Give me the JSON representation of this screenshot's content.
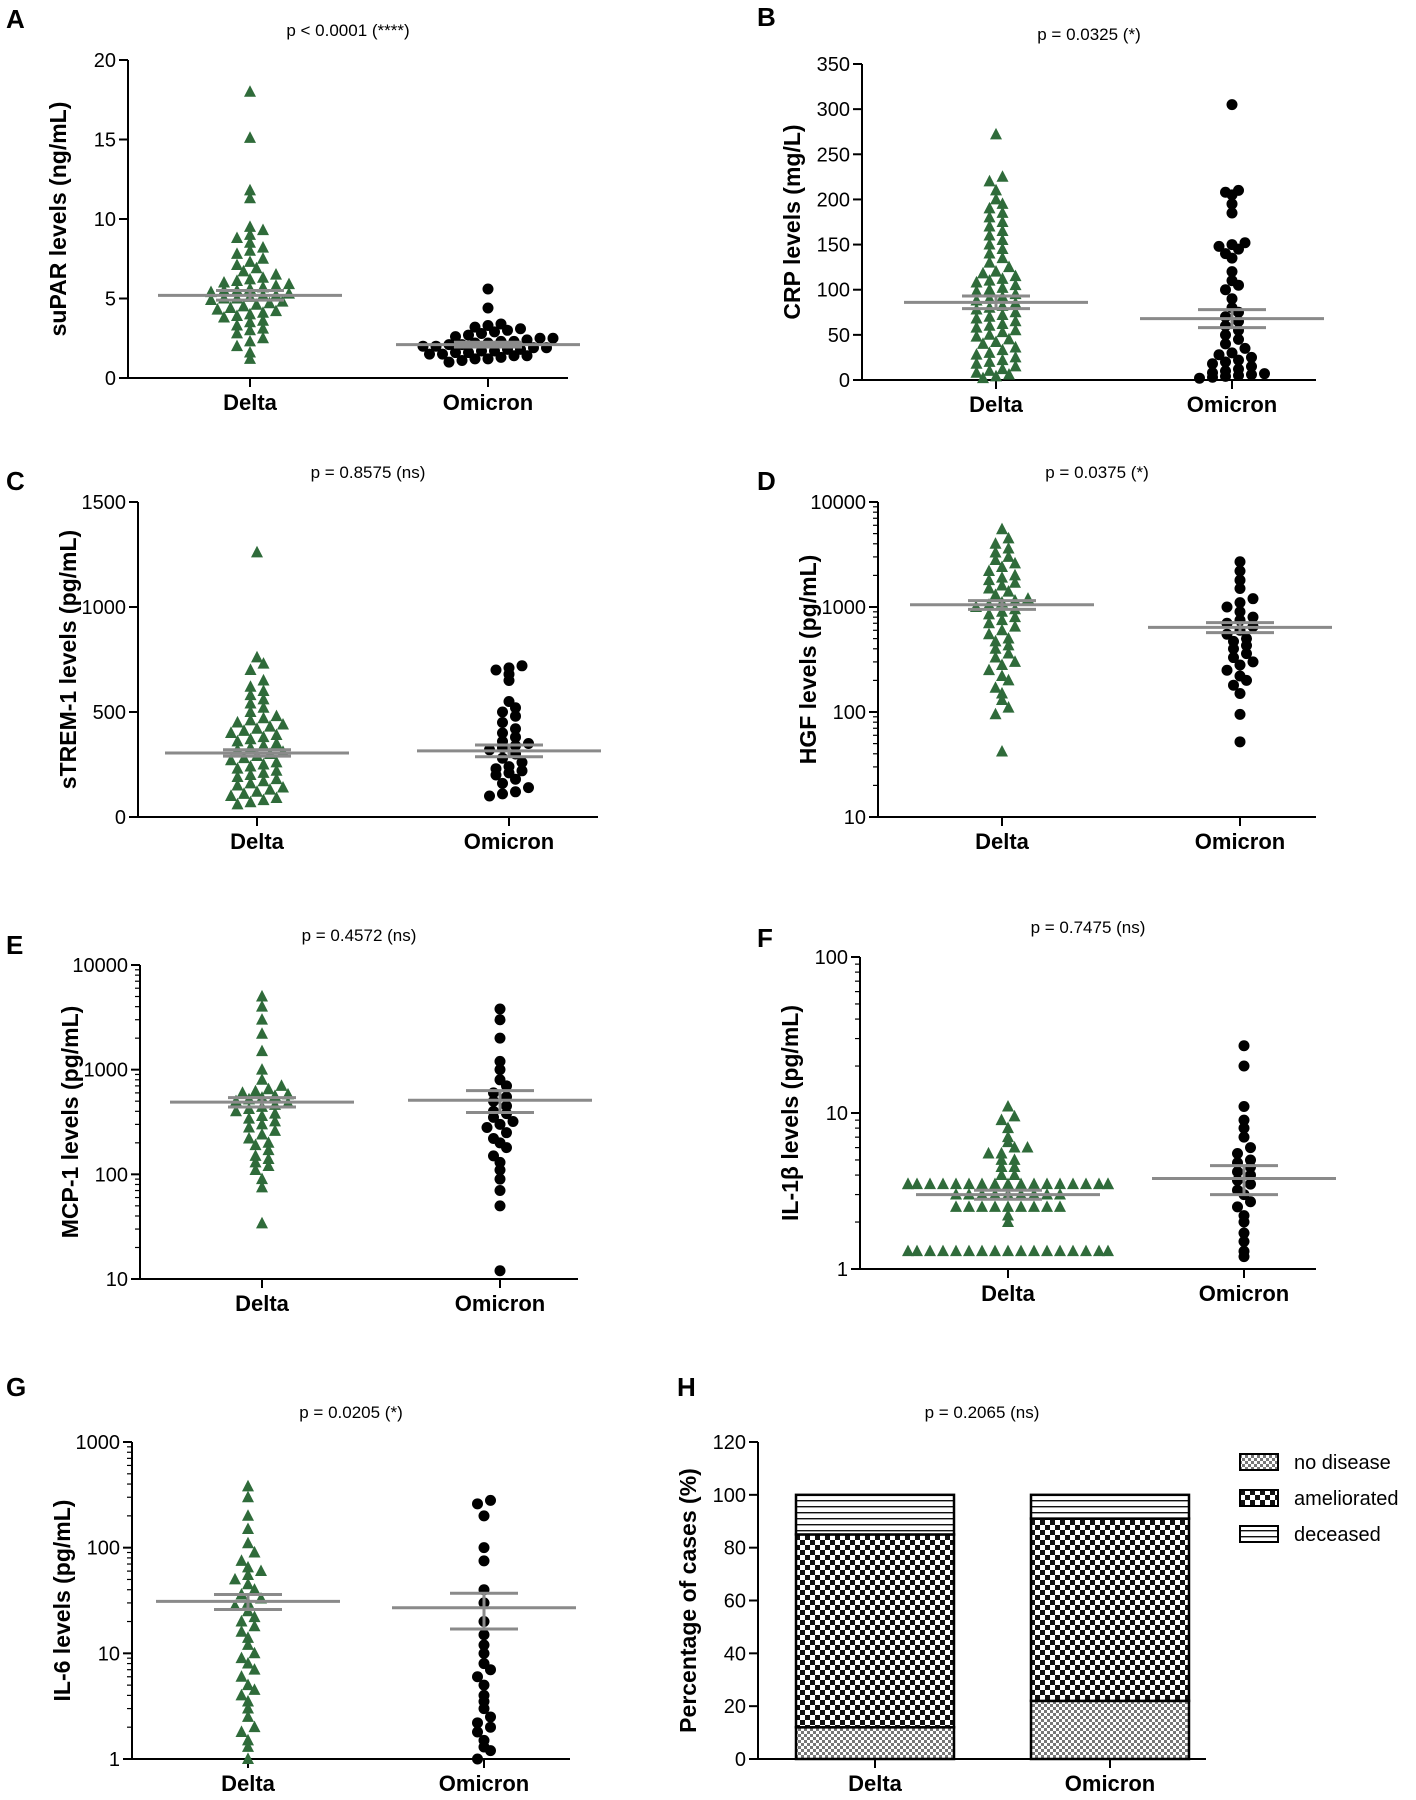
{
  "chart_data": [
    {
      "id": "A",
      "panel_letter": "A",
      "type": "scatter",
      "scale": "linear",
      "title": "p < 0.0001 (****)",
      "ylabel": "suPAR levels (ng/mL)",
      "categories": [
        "Delta",
        "Omicron"
      ],
      "ylim": [
        0,
        20
      ],
      "yticks": [
        0,
        5,
        10,
        15,
        20
      ],
      "marker": [
        "triangle",
        "circle"
      ],
      "marker_colors": [
        "#2f6b3a",
        "#000000"
      ],
      "mean": [
        5.2,
        2.1
      ],
      "sem": [
        0.3,
        0.15
      ],
      "values": [
        [
          1.2,
          1.6,
          2.0,
          2.3,
          2.5,
          2.8,
          3.0,
          3.1,
          3.3,
          3.5,
          3.6,
          3.8,
          3.9,
          4.0,
          4.1,
          4.2,
          4.3,
          4.4,
          4.5,
          4.6,
          4.7,
          4.8,
          4.9,
          5.0,
          5.0,
          5.1,
          5.2,
          5.2,
          5.3,
          5.4,
          5.5,
          5.5,
          5.6,
          5.7,
          5.8,
          5.9,
          6.0,
          6.1,
          6.2,
          6.3,
          6.5,
          6.7,
          6.9,
          7.1,
          7.3,
          7.5,
          7.8,
          8.0,
          8.2,
          8.5,
          8.8,
          9.0,
          9.3,
          9.5,
          11.3,
          11.8,
          15.1,
          18.0
        ],
        [
          1.0,
          1.1,
          1.2,
          1.2,
          1.3,
          1.4,
          1.4,
          1.5,
          1.5,
          1.6,
          1.6,
          1.7,
          1.7,
          1.8,
          1.8,
          1.9,
          1.9,
          2.0,
          2.0,
          2.1,
          2.1,
          2.2,
          2.2,
          2.3,
          2.3,
          2.4,
          2.5,
          2.5,
          2.6,
          2.7,
          2.8,
          2.9,
          3.0,
          3.1,
          3.2,
          3.3,
          3.4,
          4.4,
          5.6
        ]
      ]
    },
    {
      "id": "B",
      "panel_letter": "B",
      "type": "scatter",
      "scale": "linear",
      "title": "p = 0.0325 (*)",
      "ylabel": "CRP levels (mg/L)",
      "categories": [
        "Delta",
        "Omicron"
      ],
      "ylim": [
        0,
        350
      ],
      "yticks": [
        0,
        50,
        100,
        150,
        200,
        250,
        300,
        350
      ],
      "marker": [
        "triangle",
        "circle"
      ],
      "marker_colors": [
        "#2f6b3a",
        "#000000"
      ],
      "mean": [
        86,
        68
      ],
      "sem": [
        7,
        10
      ],
      "values": [
        [
          2,
          4,
          6,
          8,
          10,
          12,
          15,
          18,
          20,
          22,
          25,
          28,
          30,
          33,
          36,
          40,
          42,
          45,
          48,
          50,
          53,
          55,
          58,
          60,
          62,
          65,
          68,
          70,
          72,
          75,
          78,
          80,
          82,
          85,
          88,
          90,
          92,
          95,
          98,
          100,
          102,
          105,
          108,
          110,
          112,
          115,
          118,
          120,
          125,
          130,
          135,
          140,
          145,
          150,
          155,
          160,
          165,
          170,
          175,
          180,
          185,
          190,
          195,
          200,
          210,
          220,
          225,
          272
        ],
        [
          2,
          3,
          4,
          5,
          6,
          7,
          8,
          10,
          12,
          15,
          18,
          20,
          22,
          25,
          28,
          30,
          35,
          40,
          45,
          50,
          55,
          60,
          65,
          70,
          75,
          80,
          90,
          100,
          105,
          110,
          120,
          135,
          140,
          145,
          148,
          150,
          152,
          185,
          195,
          205,
          208,
          210,
          305
        ]
      ]
    },
    {
      "id": "C",
      "panel_letter": "C",
      "type": "scatter",
      "scale": "linear",
      "title": "p = 0.8575 (ns)",
      "ylabel": "sTREM-1 levels (pg/mL)",
      "categories": [
        "Delta",
        "Omicron"
      ],
      "ylim": [
        0,
        1500
      ],
      "yticks": [
        0,
        500,
        1000,
        1500
      ],
      "marker": [
        "triangle",
        "circle"
      ],
      "marker_colors": [
        "#2f6b3a",
        "#000000"
      ],
      "mean": [
        305,
        315
      ],
      "sem": [
        15,
        28
      ],
      "values": [
        [
          60,
          70,
          80,
          90,
          100,
          110,
          120,
          130,
          140,
          150,
          160,
          170,
          180,
          190,
          200,
          210,
          220,
          230,
          240,
          250,
          260,
          270,
          280,
          290,
          300,
          310,
          320,
          330,
          340,
          350,
          360,
          370,
          380,
          390,
          400,
          410,
          420,
          430,
          440,
          450,
          460,
          470,
          480,
          500,
          520,
          540,
          560,
          580,
          600,
          620,
          650,
          700,
          730,
          760,
          1260
        ],
        [
          100,
          110,
          120,
          140,
          160,
          180,
          200,
          210,
          220,
          230,
          240,
          260,
          280,
          300,
          320,
          330,
          340,
          350,
          360,
          380,
          400,
          420,
          450,
          480,
          500,
          520,
          550,
          650,
          680,
          700,
          710,
          720
        ]
      ]
    },
    {
      "id": "D",
      "panel_letter": "D",
      "type": "scatter",
      "scale": "log",
      "title": "p = 0.0375 (*)",
      "ylabel": "HGF levels (pg/mL)",
      "categories": [
        "Delta",
        "Omicron"
      ],
      "ylim": [
        10,
        10000
      ],
      "yticks": [
        10,
        100,
        1000,
        10000
      ],
      "marker": [
        "triangle",
        "circle"
      ],
      "marker_colors": [
        "#2f6b3a",
        "#000000"
      ],
      "mean": [
        1050,
        640
      ],
      "sem": [
        100,
        70
      ],
      "values": [
        [
          42,
          95,
          110,
          130,
          150,
          170,
          200,
          220,
          250,
          280,
          300,
          330,
          360,
          400,
          430,
          470,
          500,
          550,
          600,
          650,
          700,
          750,
          800,
          850,
          900,
          950,
          1000,
          1050,
          1100,
          1150,
          1200,
          1300,
          1400,
          1500,
          1600,
          1700,
          1800,
          1900,
          2000,
          2200,
          2400,
          2600,
          2800,
          3000,
          3300,
          3600,
          4000,
          4500,
          5500
        ],
        [
          52,
          95,
          150,
          180,
          200,
          220,
          250,
          280,
          300,
          330,
          360,
          400,
          430,
          470,
          500,
          550,
          600,
          650,
          700,
          750,
          800,
          900,
          1000,
          1100,
          1200,
          1500,
          1800,
          2200,
          2700
        ]
      ]
    },
    {
      "id": "E",
      "panel_letter": "E",
      "type": "scatter",
      "scale": "log",
      "title": "p = 0.4572 (ns)",
      "ylabel": "MCP-1 levels (pg/mL)",
      "categories": [
        "Delta",
        "Omicron"
      ],
      "ylim": [
        10,
        10000
      ],
      "yticks": [
        10,
        100,
        1000,
        10000
      ],
      "marker": [
        "triangle",
        "circle"
      ],
      "marker_colors": [
        "#2f6b3a",
        "#000000"
      ],
      "mean": [
        490,
        510
      ],
      "sem": [
        50,
        120
      ],
      "values": [
        [
          34,
          75,
          90,
          110,
          120,
          130,
          140,
          150,
          170,
          190,
          200,
          220,
          240,
          260,
          280,
          300,
          320,
          340,
          360,
          380,
          400,
          420,
          440,
          460,
          480,
          500,
          520,
          540,
          560,
          580,
          600,
          620,
          650,
          700,
          800,
          1000,
          1500,
          2200,
          3000,
          4000,
          5000
        ],
        [
          12,
          50,
          70,
          90,
          110,
          130,
          150,
          180,
          200,
          220,
          250,
          280,
          300,
          320,
          350,
          380,
          400,
          450,
          500,
          550,
          600,
          700,
          800,
          1000,
          1200,
          2000,
          3000,
          3800
        ]
      ]
    },
    {
      "id": "F",
      "panel_letter": "F",
      "type": "scatter",
      "scale": "log",
      "title": "p = 0.7475 (ns)",
      "ylabel": "IL-1β levels (pg/mL)",
      "categories": [
        "Delta",
        "Omicron"
      ],
      "ylim": [
        1,
        100
      ],
      "yticks": [
        1,
        10,
        100
      ],
      "marker": [
        "triangle",
        "circle"
      ],
      "marker_colors": [
        "#2f6b3a",
        "#000000"
      ],
      "mean": [
        3.0,
        3.8
      ],
      "sem": [
        0.2,
        0.8
      ],
      "values": [
        [
          1.3,
          1.3,
          1.3,
          1.3,
          1.3,
          1.3,
          1.3,
          1.3,
          1.3,
          1.3,
          1.3,
          1.3,
          1.3,
          1.3,
          1.3,
          1.3,
          1.3,
          2.0,
          2.2,
          2.5,
          2.5,
          2.5,
          2.5,
          2.5,
          2.5,
          2.5,
          2.5,
          2.5,
          3.0,
          3.0,
          3.0,
          3.0,
          3.0,
          3.0,
          3.0,
          3.0,
          3.0,
          3.5,
          3.5,
          3.5,
          3.5,
          3.5,
          3.5,
          3.5,
          3.5,
          3.5,
          3.5,
          3.5,
          3.5,
          3.5,
          3.5,
          3.5,
          3.5,
          3.5,
          3.5,
          3.5,
          4.0,
          4.0,
          4.5,
          4.5,
          5.0,
          5.0,
          5.5,
          5.5,
          6.0,
          6.0,
          6.5,
          7.0,
          8.0,
          9.0,
          9.5,
          11.0
        ],
        [
          1.2,
          1.3,
          1.5,
          1.7,
          2.0,
          2.2,
          2.5,
          2.7,
          3.0,
          3.2,
          3.5,
          3.7,
          4.0,
          4.2,
          4.5,
          4.8,
          5.0,
          5.5,
          6.0,
          7.0,
          8.0,
          9.0,
          11.0,
          20.0,
          27.0
        ]
      ]
    },
    {
      "id": "G",
      "panel_letter": "G",
      "type": "scatter",
      "scale": "log",
      "title": "p = 0.0205 (*)",
      "ylabel": "IL-6 levels (pg/mL)",
      "categories": [
        "Delta",
        "Omicron"
      ],
      "ylim": [
        1,
        1000
      ],
      "yticks": [
        1,
        10,
        100,
        1000
      ],
      "marker": [
        "triangle",
        "circle"
      ],
      "marker_colors": [
        "#2f6b3a",
        "#000000"
      ],
      "mean": [
        31,
        27
      ],
      "sem": [
        5,
        10
      ],
      "values": [
        [
          1.0,
          1.3,
          1.5,
          1.8,
          2.0,
          2.5,
          3.0,
          3.5,
          4.0,
          4.5,
          5.0,
          6.0,
          7.0,
          8.0,
          9.0,
          10,
          12,
          14,
          16,
          18,
          20,
          22,
          25,
          28,
          30,
          33,
          36,
          40,
          45,
          50,
          55,
          60,
          65,
          75,
          90,
          110,
          150,
          200,
          300,
          380
        ],
        [
          1.0,
          1.2,
          1.3,
          1.5,
          1.8,
          2.0,
          2.2,
          2.5,
          3.0,
          3.5,
          4.0,
          5.0,
          6.0,
          7.0,
          8.0,
          10,
          12,
          15,
          20,
          30,
          40,
          75,
          100,
          200,
          260,
          280
        ]
      ]
    },
    {
      "id": "H",
      "panel_letter": "H",
      "type": "bar",
      "stacked": true,
      "title": "p = 0.2065 (ns)",
      "ylabel": "Percentage of cases (%)",
      "categories": [
        "Delta",
        "Omicron"
      ],
      "ylim": [
        0,
        120
      ],
      "yticks": [
        0,
        20,
        40,
        60,
        80,
        100,
        120
      ],
      "legend_position": "top-right",
      "series": [
        {
          "name": "no disease",
          "values": [
            12,
            22
          ],
          "pattern": "fine-check"
        },
        {
          "name": "ameliorated",
          "values": [
            73,
            69
          ],
          "pattern": "coarse-check"
        },
        {
          "name": "deceased",
          "values": [
            15,
            9
          ],
          "pattern": "horizontal-lines"
        }
      ]
    }
  ]
}
